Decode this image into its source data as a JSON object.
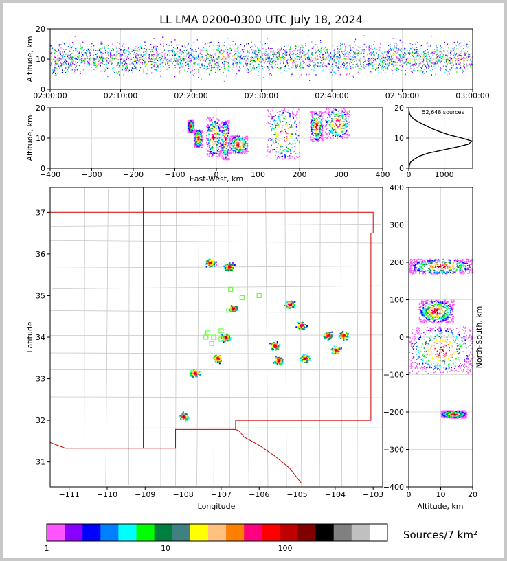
{
  "title": "LL LMA 0200-0300 UTC July 18, 2024",
  "colors": {
    "frame": "#c8c8c8",
    "border": "#cc0000",
    "county": "#bdbdbd",
    "station": "#66ff33",
    "histogram": "#000000"
  },
  "chart_data": [
    {
      "type": "scatter",
      "panel": "altitude-vs-time",
      "ylabel": "Altitude, km",
      "xlabel": "",
      "ylim": [
        0,
        20
      ],
      "yticks": [
        "0",
        "10",
        "20"
      ],
      "xticks": [
        "02:00:00",
        "02:10:00",
        "02:20:00",
        "02:30:00",
        "02:40:00",
        "02:50:00",
        "03:00:00"
      ],
      "x_range": [
        "02:00:00",
        "03:00:00"
      ],
      "grid": true,
      "source_altitude_band_km": [
        4,
        18
      ],
      "densest_altitude_km": 10
    },
    {
      "type": "scatter",
      "panel": "altitude-vs-east-west",
      "xlabel": "East-West, km",
      "ylabel": "Altitude, km",
      "xlim": [
        -400,
        400
      ],
      "ylim": [
        0,
        20
      ],
      "xticks": [
        "−400",
        "−300",
        "−200",
        "−100",
        "0",
        "100",
        "200",
        "300",
        "400"
      ],
      "yticks": [
        "0",
        "10",
        "20"
      ],
      "grid": true,
      "clusters": [
        {
          "x_km": [
            -70,
            -55
          ],
          "alt_km": [
            12,
            16
          ]
        },
        {
          "x_km": [
            -55,
            -35
          ],
          "alt_km": [
            7,
            13
          ]
        },
        {
          "x_km": [
            -25,
            10
          ],
          "alt_km": [
            4,
            17
          ]
        },
        {
          "x_km": [
            10,
            30
          ],
          "alt_km": [
            3,
            16
          ]
        },
        {
          "x_km": [
            30,
            75
          ],
          "alt_km": [
            5,
            11
          ]
        },
        {
          "x_km": [
            120,
            200
          ],
          "alt_km": [
            3,
            20
          ]
        },
        {
          "x_km": [
            225,
            255
          ],
          "alt_km": [
            9,
            19
          ]
        },
        {
          "x_km": [
            260,
            320
          ],
          "alt_km": [
            10,
            20
          ]
        }
      ]
    },
    {
      "type": "line",
      "panel": "altitude-histogram",
      "annotation": "52,648 sources",
      "xlim": [
        0,
        1800
      ],
      "ylim": [
        0,
        20
      ],
      "xticks": [
        "0",
        "1000"
      ],
      "yticks": [
        "0",
        "10",
        "20"
      ],
      "grid": true,
      "series": [
        {
          "altitude_km": [
            0,
            1,
            2,
            3,
            4,
            5,
            6,
            7,
            8,
            9,
            10,
            11,
            12,
            13,
            14,
            15,
            16,
            17,
            18,
            19,
            20
          ],
          "count": [
            5,
            20,
            50,
            150,
            300,
            550,
            950,
            1350,
            1680,
            1780,
            1500,
            1150,
            900,
            680,
            500,
            330,
            170,
            70,
            25,
            8,
            3
          ]
        }
      ]
    },
    {
      "type": "scatter",
      "panel": "plan-view-map",
      "xlabel": "Longitude",
      "ylabel": "Latitude",
      "xlim": [
        -111.5,
        -102.75
      ],
      "ylim": [
        30.4,
        37.6
      ],
      "xticks": [
        "−111",
        "−110",
        "−109",
        "−108",
        "−107",
        "−106",
        "−105",
        "−104",
        "−103"
      ],
      "yticks": [
        "31",
        "32",
        "33",
        "34",
        "35",
        "36",
        "37"
      ],
      "clusters": [
        {
          "lon": -107.3,
          "lat": 35.8
        },
        {
          "lon": -106.8,
          "lat": 35.7
        },
        {
          "lon": -106.7,
          "lat": 34.7
        },
        {
          "lon": -106.9,
          "lat": 34.0
        },
        {
          "lon": -107.1,
          "lat": 33.5
        },
        {
          "lon": -107.7,
          "lat": 33.15
        },
        {
          "lon": -108.0,
          "lat": 32.1
        },
        {
          "lon": -105.6,
          "lat": 33.8
        },
        {
          "lon": -105.5,
          "lat": 33.45
        },
        {
          "lon": -105.2,
          "lat": 34.8
        },
        {
          "lon": -104.9,
          "lat": 34.3
        },
        {
          "lon": -104.8,
          "lat": 33.5
        },
        {
          "lon": -104.2,
          "lat": 34.05
        },
        {
          "lon": -103.8,
          "lat": 34.05
        },
        {
          "lon": -104.0,
          "lat": 33.7
        }
      ],
      "stations": [
        {
          "lon": -106.75,
          "lat": 35.15
        },
        {
          "lon": -106.45,
          "lat": 34.95
        },
        {
          "lon": -106.0,
          "lat": 35.0
        },
        {
          "lon": -106.8,
          "lat": 34.65
        },
        {
          "lon": -107.0,
          "lat": 34.15
        },
        {
          "lon": -107.35,
          "lat": 34.1
        },
        {
          "lon": -107.4,
          "lat": 34.0
        },
        {
          "lon": -107.2,
          "lat": 34.0
        },
        {
          "lon": -107.0,
          "lat": 33.95
        },
        {
          "lon": -106.85,
          "lat": 34.0
        },
        {
          "lon": -107.25,
          "lat": 33.85
        }
      ]
    },
    {
      "type": "scatter",
      "panel": "north-south-vs-altitude",
      "xlabel": "Altitude, km",
      "ylabel": "North-South, km",
      "xlim": [
        0,
        20
      ],
      "ylim": [
        -400,
        400
      ],
      "xticks": [
        "0",
        "10",
        "20"
      ],
      "yticks": [
        "−400",
        "−300",
        "−200",
        "−100",
        "0",
        "100",
        "200",
        "300",
        "400"
      ],
      "grid": true,
      "clusters": [
        {
          "ns_km": [
            170,
            210
          ],
          "alt_km": [
            0,
            20
          ]
        },
        {
          "ns_km": [
            40,
            100
          ],
          "alt_km": [
            3,
            14
          ]
        },
        {
          "ns_km": [
            -95,
            30
          ],
          "alt_km": [
            0,
            20
          ]
        },
        {
          "ns_km": [
            -215,
            -195
          ],
          "alt_km": [
            10,
            18
          ]
        }
      ]
    }
  ],
  "colorbar": {
    "label": "Sources/7 km²",
    "tick_labels": [
      "1",
      "10",
      "100"
    ],
    "colors": [
      "#ff55ff",
      "#8800ff",
      "#0000ff",
      "#0080ff",
      "#00ffff",
      "#00ff00",
      "#008040",
      "#408080",
      "#ffff00",
      "#ffc080",
      "#ff8000",
      "#ff0080",
      "#ff0000",
      "#c00000",
      "#800000",
      "#000000",
      "#808080",
      "#c0c0c0",
      "#ffffff"
    ]
  }
}
